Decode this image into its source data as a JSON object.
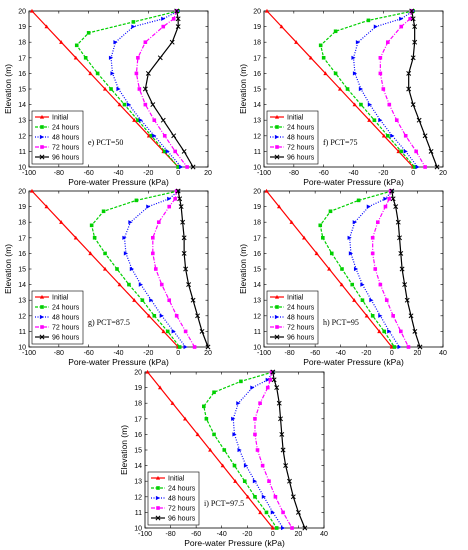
{
  "chart_data": [
    {
      "type": "line",
      "annotation": "e) PCT=50",
      "xlabel": "Pore-water Pressure (kPa)",
      "ylabel": "Elevation (m)",
      "xlim": [
        -100,
        20
      ],
      "ylim": [
        10,
        20
      ],
      "xticks": [
        -100,
        -80,
        -60,
        -40,
        -20,
        0,
        20
      ],
      "yticks": [
        10,
        11,
        12,
        13,
        14,
        15,
        16,
        17,
        18,
        19,
        20
      ],
      "legend_position": "bottom-left",
      "series": [
        {
          "name": "Initial",
          "color": "#ff0000",
          "marker": "triangle",
          "x": [
            -98,
            -88.2,
            -78.4,
            -68.6,
            -58.8,
            -49,
            -39.2,
            -29.4,
            -19.6,
            -9.8,
            0
          ],
          "y": [
            20,
            19,
            18,
            17,
            16,
            15,
            14,
            13,
            12,
            11,
            10
          ]
        },
        {
          "name": "24 hours",
          "color": "#00d000",
          "marker": "square",
          "x": [
            0,
            -30,
            -60,
            -68,
            -62,
            -54,
            -45,
            -36,
            -27,
            -18,
            -9,
            0
          ],
          "y": [
            20,
            19.3,
            18.6,
            17.8,
            17,
            16,
            15,
            14,
            13,
            12,
            11,
            10
          ]
        },
        {
          "name": "48 hours",
          "color": "#0000ff",
          "marker": "triangle-right",
          "x": [
            0,
            -10,
            -30,
            -42,
            -45,
            -44,
            -40,
            -33,
            -25,
            -16,
            -7,
            2
          ],
          "y": [
            20,
            19.5,
            19,
            18,
            17,
            16,
            15,
            14,
            13,
            12,
            11,
            10
          ]
        },
        {
          "name": "72 hours",
          "color": "#ff00ff",
          "marker": "square",
          "x": [
            -1,
            -3,
            -10,
            -22,
            -27,
            -28,
            -26,
            -22,
            -16,
            -9,
            -2,
            6
          ],
          "y": [
            20,
            19.5,
            19,
            18,
            17,
            16,
            15,
            14,
            13,
            12,
            11,
            10
          ]
        },
        {
          "name": "96 hours",
          "color": "#000000",
          "marker": "x",
          "x": [
            -1,
            0,
            0,
            -4,
            -12,
            -20,
            -22,
            -17,
            -10,
            -3,
            4,
            10
          ],
          "y": [
            20,
            19.5,
            19,
            18,
            17,
            16,
            15,
            14,
            13,
            12,
            11,
            10
          ]
        }
      ]
    },
    {
      "type": "line",
      "annotation": "f) PCT=75",
      "xlabel": "Pore-water Pressure (kPa)",
      "ylabel": "Elevation (m)",
      "xlim": [
        -100,
        20
      ],
      "ylim": [
        10,
        20
      ],
      "xticks": [
        -100,
        -80,
        -60,
        -40,
        -20,
        0,
        20
      ],
      "yticks": [
        10,
        11,
        12,
        13,
        14,
        15,
        16,
        17,
        18,
        19,
        20
      ],
      "legend_position": "bottom-left",
      "series": [
        {
          "name": "Initial",
          "color": "#ff0000",
          "marker": "triangle",
          "x": [
            -98,
            -88.2,
            -78.4,
            -68.6,
            -58.8,
            -49,
            -39.2,
            -29.4,
            -19.6,
            -9.8,
            0
          ],
          "y": [
            20,
            19,
            18,
            17,
            16,
            15,
            14,
            13,
            12,
            11,
            10
          ]
        },
        {
          "name": "24 hours",
          "color": "#00d000",
          "marker": "square",
          "x": [
            0,
            -30,
            -52,
            -62,
            -60,
            -52,
            -44,
            -35,
            -26,
            -17,
            -8,
            1
          ],
          "y": [
            20,
            19.4,
            18.7,
            17.8,
            17,
            16,
            15,
            14,
            13,
            12,
            11,
            10
          ]
        },
        {
          "name": "48 hours",
          "color": "#0000ff",
          "marker": "triangle-right",
          "x": [
            0,
            -8,
            -25,
            -37,
            -40,
            -39,
            -35,
            -29,
            -22,
            -14,
            -5,
            3
          ],
          "y": [
            20,
            19.5,
            19,
            18,
            17,
            16,
            15,
            14,
            13,
            12,
            11,
            10
          ]
        },
        {
          "name": "72 hours",
          "color": "#ff00ff",
          "marker": "square",
          "x": [
            -1,
            -2,
            -8,
            -17,
            -22,
            -22,
            -20,
            -16,
            -11,
            -5,
            2,
            8
          ],
          "y": [
            20,
            19.5,
            19,
            18,
            17,
            16,
            15,
            14,
            13,
            12,
            11,
            10
          ]
        },
        {
          "name": "96 hours",
          "color": "#000000",
          "marker": "x",
          "x": [
            -1,
            0,
            1,
            1,
            0,
            -3,
            -3,
            0,
            4,
            8,
            12,
            16
          ],
          "y": [
            20,
            19.5,
            19,
            18,
            17,
            16,
            15,
            14,
            13,
            12,
            11,
            10
          ]
        }
      ]
    },
    {
      "type": "line",
      "annotation": "g) PCT=87.5",
      "xlabel": "Pore-water Pressure (kPa)",
      "ylabel": "Elevation (m)",
      "xlim": [
        -100,
        20
      ],
      "ylim": [
        10,
        20
      ],
      "xticks": [
        -100,
        -80,
        -60,
        -40,
        -20,
        0,
        20
      ],
      "yticks": [
        10,
        11,
        12,
        13,
        14,
        15,
        16,
        17,
        18,
        19,
        20
      ],
      "legend_position": "bottom-left",
      "series": [
        {
          "name": "Initial",
          "color": "#ff0000",
          "marker": "triangle",
          "x": [
            -98,
            -88.2,
            -78.4,
            -68.6,
            -58.8,
            -49,
            -39.2,
            -29.4,
            -19.6,
            -9.8,
            0
          ],
          "y": [
            20,
            19,
            18,
            17,
            16,
            15,
            14,
            13,
            12,
            11,
            10
          ]
        },
        {
          "name": "24 hours",
          "color": "#00d000",
          "marker": "square",
          "x": [
            0,
            -28,
            -50,
            -58,
            -56,
            -49,
            -41,
            -33,
            -24,
            -16,
            -7,
            1
          ],
          "y": [
            20,
            19.4,
            18.7,
            17.8,
            17,
            16,
            15,
            14,
            13,
            12,
            11,
            10
          ]
        },
        {
          "name": "48 hours",
          "color": "#0000ff",
          "marker": "triangle-right",
          "x": [
            0,
            -6,
            -20,
            -32,
            -36,
            -35,
            -31,
            -25,
            -18,
            -11,
            -3,
            5
          ],
          "y": [
            20,
            19.5,
            19,
            18,
            17,
            16,
            15,
            14,
            13,
            12,
            11,
            10
          ]
        },
        {
          "name": "72 hours",
          "color": "#ff00ff",
          "marker": "square",
          "x": [
            -1,
            -2,
            -6,
            -13,
            -17,
            -17,
            -15,
            -11,
            -6,
            -1,
            5,
            11
          ],
          "y": [
            20,
            19.5,
            19,
            18,
            17,
            16,
            15,
            14,
            13,
            12,
            11,
            10
          ]
        },
        {
          "name": "96 hours",
          "color": "#000000",
          "marker": "x",
          "x": [
            0,
            1,
            2,
            3,
            4,
            4,
            5,
            7,
            10,
            13,
            16,
            20
          ],
          "y": [
            20,
            19.5,
            19,
            18,
            17,
            16,
            15,
            14,
            13,
            12,
            11,
            10
          ]
        }
      ]
    },
    {
      "type": "line",
      "annotation": "h) PCT=95",
      "xlabel": "Pore-water Pressure (kPa)",
      "ylabel": "Elevation (m)",
      "xlim": [
        -100,
        40
      ],
      "ylim": [
        10,
        20
      ],
      "xticks": [
        -100,
        -80,
        -60,
        -40,
        -20,
        0,
        20,
        40
      ],
      "yticks": [
        10,
        11,
        12,
        13,
        14,
        15,
        16,
        17,
        18,
        19,
        20
      ],
      "legend_position": "bottom-left",
      "series": [
        {
          "name": "Initial",
          "color": "#ff0000",
          "marker": "triangle",
          "x": [
            -98,
            -88.2,
            -78.4,
            -68.6,
            -58.8,
            -49,
            -39.2,
            -29.4,
            -19.6,
            -9.8,
            0
          ],
          "y": [
            20,
            19,
            18,
            17,
            16,
            15,
            14,
            13,
            12,
            11,
            10
          ]
        },
        {
          "name": "24 hours",
          "color": "#00d000",
          "marker": "square",
          "x": [
            0,
            -26,
            -48,
            -56,
            -54,
            -47,
            -39,
            -31,
            -23,
            -15,
            -6,
            2
          ],
          "y": [
            20,
            19.4,
            18.7,
            17.8,
            17,
            16,
            15,
            14,
            13,
            12,
            11,
            10
          ]
        },
        {
          "name": "48 hours",
          "color": "#0000ff",
          "marker": "triangle-right",
          "x": [
            0,
            -5,
            -18,
            -29,
            -33,
            -32,
            -28,
            -23,
            -16,
            -9,
            -2,
            6
          ],
          "y": [
            20,
            19.5,
            19,
            18,
            17,
            16,
            15,
            14,
            13,
            12,
            11,
            10
          ]
        },
        {
          "name": "72 hours",
          "color": "#ff00ff",
          "marker": "square",
          "x": [
            -1,
            -2,
            -5,
            -11,
            -15,
            -15,
            -13,
            -9,
            -4,
            1,
            7,
            13
          ],
          "y": [
            20,
            19.5,
            19,
            18,
            17,
            16,
            15,
            14,
            13,
            12,
            11,
            10
          ]
        },
        {
          "name": "96 hours",
          "color": "#000000",
          "marker": "x",
          "x": [
            0,
            1,
            3,
            5,
            6,
            7,
            8,
            10,
            12,
            15,
            18,
            22
          ],
          "y": [
            20,
            19.5,
            19,
            18,
            17,
            16,
            15,
            14,
            13,
            12,
            11,
            10
          ]
        }
      ]
    },
    {
      "type": "line",
      "annotation": "i) PCT=97.5",
      "xlabel": "Pore-water Pressure (kPa)",
      "ylabel": "Elevation (m)",
      "xlim": [
        -100,
        40
      ],
      "ylim": [
        10,
        20
      ],
      "xticks": [
        -100,
        -80,
        -60,
        -40,
        -20,
        0,
        20,
        40
      ],
      "yticks": [
        10,
        11,
        12,
        13,
        14,
        15,
        16,
        17,
        18,
        19,
        20
      ],
      "legend_position": "bottom-left",
      "series": [
        {
          "name": "Initial",
          "color": "#ff0000",
          "marker": "triangle",
          "x": [
            -98,
            -88.2,
            -78.4,
            -68.6,
            -58.8,
            -49,
            -39.2,
            -29.4,
            -19.6,
            -9.8,
            0
          ],
          "y": [
            20,
            19,
            18,
            17,
            16,
            15,
            14,
            13,
            12,
            11,
            10
          ]
        },
        {
          "name": "24 hours",
          "color": "#00d000",
          "marker": "square",
          "x": [
            0,
            -25,
            -46,
            -54,
            -52,
            -46,
            -38,
            -30,
            -22,
            -14,
            -5,
            3
          ],
          "y": [
            20,
            19.4,
            18.7,
            17.8,
            17,
            16,
            15,
            14,
            13,
            12,
            11,
            10
          ]
        },
        {
          "name": "48 hours",
          "color": "#0000ff",
          "marker": "triangle-right",
          "x": [
            0,
            -4,
            -16,
            -27,
            -31,
            -30,
            -26,
            -21,
            -14,
            -7,
            0,
            8
          ],
          "y": [
            20,
            19.5,
            19,
            18,
            17,
            16,
            15,
            14,
            13,
            12,
            11,
            10
          ]
        },
        {
          "name": "72 hours",
          "color": "#ff00ff",
          "marker": "square",
          "x": [
            -1,
            -2,
            -4,
            -10,
            -14,
            -14,
            -12,
            -8,
            -3,
            2,
            8,
            15
          ],
          "y": [
            20,
            19.5,
            19,
            18,
            17,
            16,
            15,
            14,
            13,
            12,
            11,
            10
          ]
        },
        {
          "name": "96 hours",
          "color": "#000000",
          "marker": "x",
          "x": [
            0,
            1,
            3,
            5,
            6,
            7,
            8,
            10,
            13,
            16,
            20,
            25
          ],
          "y": [
            20,
            19.5,
            19,
            18,
            17,
            16,
            15,
            14,
            13,
            12,
            11,
            10
          ]
        }
      ]
    }
  ]
}
